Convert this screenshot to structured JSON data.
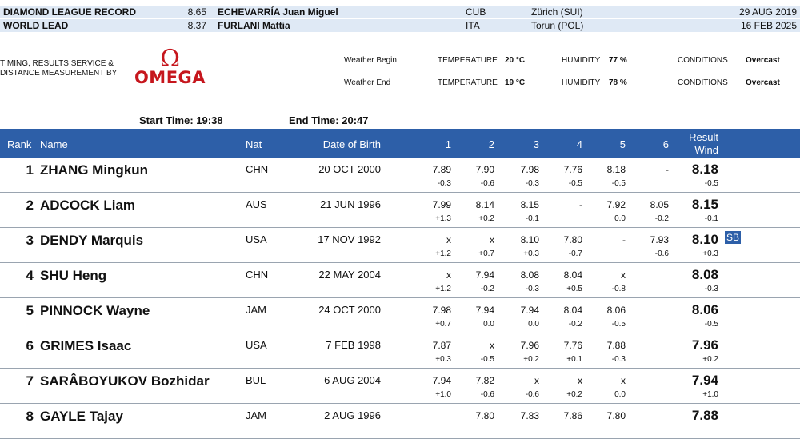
{
  "records": [
    {
      "label": "DIAMOND LEAGUE RECORD",
      "mark": "8.65",
      "athlete": "ECHEVARRÍA Juan Miguel",
      "nat": "CUB",
      "venue": "Zürich (SUI)",
      "date": "29 AUG 2019"
    },
    {
      "label": "WORLD LEAD",
      "mark": "8.37",
      "athlete": "FURLANI Mattia",
      "nat": "ITA",
      "venue": "Torun (POL)",
      "date": "16 FEB 2025"
    }
  ],
  "timing_text": [
    "TIMING, RESULTS SERVICE &",
    "DISTANCE MEASUREMENT BY"
  ],
  "logo": {
    "symbol": "Ω",
    "word": "OMEGA"
  },
  "weather": [
    {
      "label": "Weather Begin",
      "temp_label": "TEMPERATURE",
      "temp": "20 °C",
      "hum_label": "HUMIDITY",
      "hum": "77 %",
      "cond_label": "CONDITIONS",
      "cond": "Overcast"
    },
    {
      "label": "Weather End",
      "temp_label": "TEMPERATURE",
      "temp": "19 °C",
      "hum_label": "HUMIDITY",
      "hum": "78 %",
      "cond_label": "CONDITIONS",
      "cond": "Overcast"
    }
  ],
  "start_time": {
    "label": "Start Time:",
    "value": "19:38"
  },
  "end_time": {
    "label": "End Time:",
    "value": "20:47"
  },
  "header": {
    "rank": "Rank",
    "name": "Name",
    "nat": "Nat",
    "dob": "Date of Birth",
    "a1": "1",
    "a2": "2",
    "a3": "3",
    "a4": "4",
    "a5": "5",
    "a6": "6",
    "result": "Result",
    "wind": "Wind"
  },
  "rows": [
    {
      "rank": "1",
      "name": "ZHANG Mingkun",
      "nat": "CHN",
      "dob": "20 OCT 2000",
      "attempts": [
        "7.89",
        "7.90",
        "7.98",
        "7.76",
        "8.18",
        "-"
      ],
      "winds": [
        "-0.3",
        "-0.6",
        "-0.3",
        "-0.5",
        "-0.5",
        ""
      ],
      "result": "8.18",
      "rwind": "-0.5",
      "badge": ""
    },
    {
      "rank": "2",
      "name": "ADCOCK Liam",
      "nat": "AUS",
      "dob": "21 JUN 1996",
      "attempts": [
        "7.99",
        "8.14",
        "8.15",
        "-",
        "7.92",
        "8.05"
      ],
      "winds": [
        "+1.3",
        "+0.2",
        "-0.1",
        "",
        "0.0",
        "-0.2"
      ],
      "result": "8.15",
      "rwind": "-0.1",
      "badge": ""
    },
    {
      "rank": "3",
      "name": "DENDY Marquis",
      "nat": "USA",
      "dob": "17 NOV 1992",
      "attempts": [
        "x",
        "x",
        "8.10",
        "7.80",
        "-",
        "7.93"
      ],
      "winds": [
        "+1.2",
        "+0.7",
        "+0.3",
        "-0.7",
        "",
        "-0.6"
      ],
      "result": "8.10",
      "rwind": "+0.3",
      "badge": "SB"
    },
    {
      "rank": "4",
      "name": "SHU Heng",
      "nat": "CHN",
      "dob": "22 MAY 2004",
      "attempts": [
        "x",
        "7.94",
        "8.08",
        "8.04",
        "x",
        ""
      ],
      "winds": [
        "+1.2",
        "-0.2",
        "-0.3",
        "+0.5",
        "-0.8",
        ""
      ],
      "result": "8.08",
      "rwind": "-0.3",
      "badge": ""
    },
    {
      "rank": "5",
      "name": "PINNOCK Wayne",
      "nat": "JAM",
      "dob": "24 OCT 2000",
      "attempts": [
        "7.98",
        "7.94",
        "7.94",
        "8.04",
        "8.06",
        ""
      ],
      "winds": [
        "+0.7",
        "0.0",
        "0.0",
        "-0.2",
        "-0.5",
        ""
      ],
      "result": "8.06",
      "rwind": "-0.5",
      "badge": ""
    },
    {
      "rank": "6",
      "name": "GRIMES Isaac",
      "nat": "USA",
      "dob": "7 FEB 1998",
      "attempts": [
        "7.87",
        "x",
        "7.96",
        "7.76",
        "7.88",
        ""
      ],
      "winds": [
        "+0.3",
        "-0.5",
        "+0.2",
        "+0.1",
        "-0.3",
        ""
      ],
      "result": "7.96",
      "rwind": "+0.2",
      "badge": ""
    },
    {
      "rank": "7",
      "name": "SARÂBOYUKOV Bozhidar",
      "nat": "BUL",
      "dob": "6 AUG 2004",
      "attempts": [
        "7.94",
        "7.82",
        "x",
        "x",
        "x",
        ""
      ],
      "winds": [
        "+1.0",
        "-0.6",
        "-0.6",
        "+0.2",
        "0.0",
        ""
      ],
      "result": "7.94",
      "rwind": "+1.0",
      "badge": ""
    },
    {
      "rank": "8",
      "name": "GAYLE Tajay",
      "nat": "JAM",
      "dob": "2 AUG 1996",
      "attempts": [
        "",
        "7.80",
        "7.83",
        "7.86",
        "7.80",
        ""
      ],
      "winds": [
        "",
        "",
        "",
        "",
        "",
        ""
      ],
      "result": "7.88",
      "rwind": "",
      "badge": ""
    }
  ]
}
